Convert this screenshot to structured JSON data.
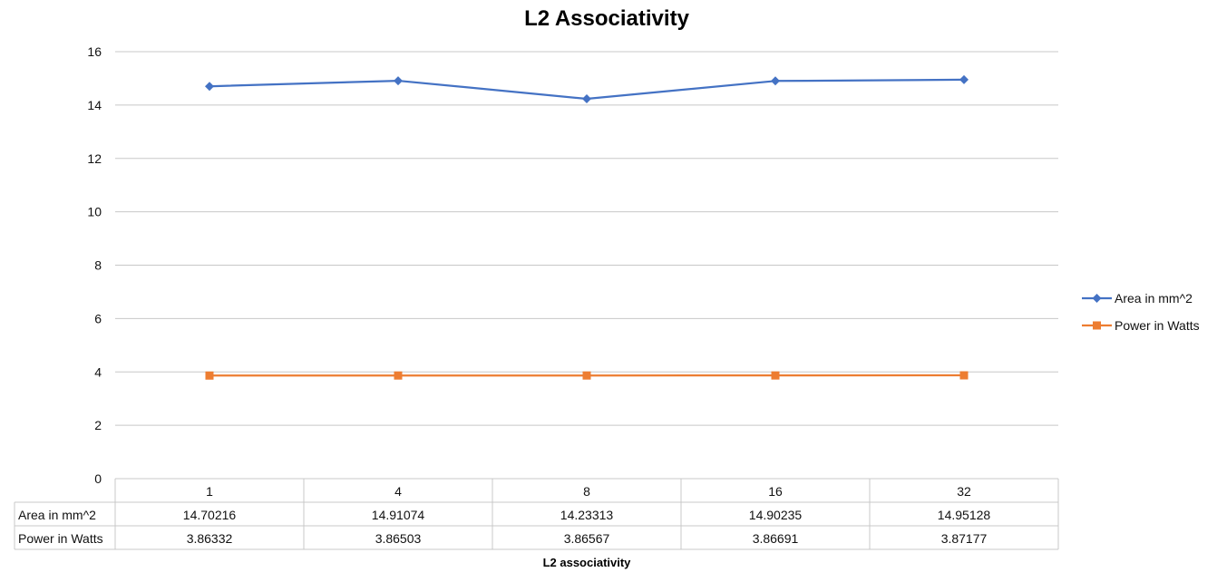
{
  "chart_data": {
    "type": "line",
    "title": "L2 Associativity",
    "xlabel": "L2 associativity",
    "ylabel": "",
    "ylim": [
      0,
      16
    ],
    "yticks": [
      0,
      2,
      4,
      6,
      8,
      10,
      12,
      14,
      16
    ],
    "grid": true,
    "legend_position": "right",
    "categories": [
      "1",
      "4",
      "8",
      "16",
      "32"
    ],
    "series": [
      {
        "name": "Area in mm^2",
        "values": [
          14.70216,
          14.91074,
          14.23313,
          14.90235,
          14.95128
        ],
        "display": [
          "14.70216",
          "14.91074",
          "14.23313",
          "14.90235",
          "14.95128"
        ],
        "color": "#4472C4",
        "marker": "diamond"
      },
      {
        "name": "Power in Watts",
        "values": [
          3.86332,
          3.86503,
          3.86567,
          3.86691,
          3.87177
        ],
        "display": [
          "3.86332",
          "3.86503",
          "3.86567",
          "3.86691",
          "3.87177"
        ],
        "color": "#ED7D31",
        "marker": "square"
      }
    ]
  }
}
